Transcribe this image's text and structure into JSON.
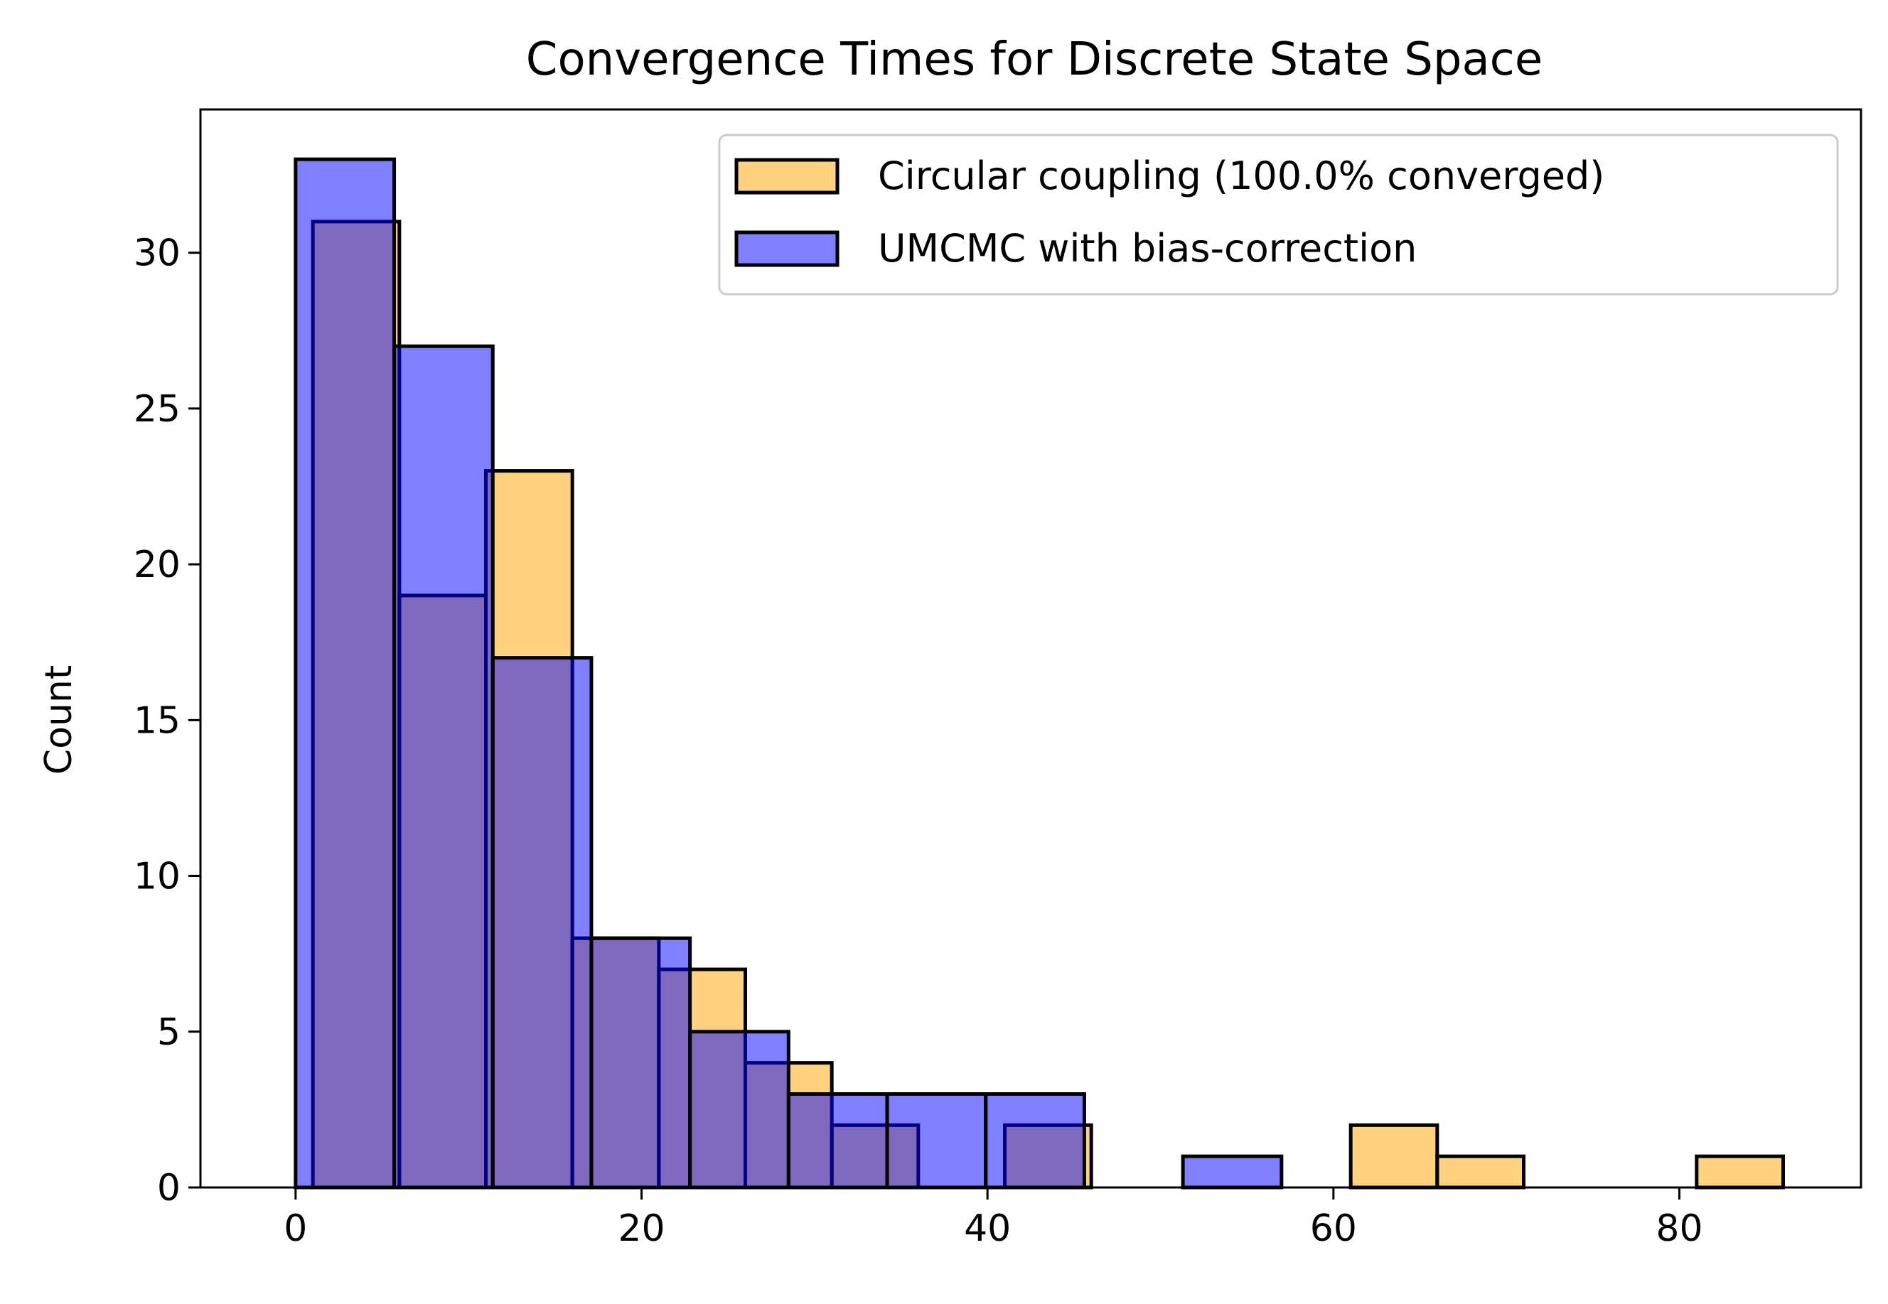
{
  "chart_data": {
    "type": "bar",
    "title": "Convergence Times for Discrete State Space",
    "xlabel": "",
    "ylabel": "Count",
    "xlim": [
      -5.5,
      90.5
    ],
    "ylim": [
      0,
      34.6
    ],
    "xticks": [
      0,
      20,
      40,
      60,
      80
    ],
    "yticks": [
      0,
      5,
      10,
      15,
      20,
      25,
      30
    ],
    "grid": false,
    "legend_position": "top-right",
    "series": [
      {
        "name": "Circular coupling (100.0% converged)",
        "color": "#FFA500",
        "alpha": 0.5,
        "bins": [
          {
            "x0": 1.0,
            "x1": 6.0,
            "count": 31
          },
          {
            "x0": 6.0,
            "x1": 11.0,
            "count": 19
          },
          {
            "x0": 11.0,
            "x1": 16.0,
            "count": 23
          },
          {
            "x0": 16.0,
            "x1": 21.0,
            "count": 8
          },
          {
            "x0": 21.0,
            "x1": 26.0,
            "count": 7
          },
          {
            "x0": 26.0,
            "x1": 31.0,
            "count": 4
          },
          {
            "x0": 31.0,
            "x1": 36.0,
            "count": 2
          },
          {
            "x0": 36.0,
            "x1": 41.0,
            "count": 0
          },
          {
            "x0": 41.0,
            "x1": 46.0,
            "count": 2
          },
          {
            "x0": 46.0,
            "x1": 51.0,
            "count": 0
          },
          {
            "x0": 51.0,
            "x1": 56.0,
            "count": 0
          },
          {
            "x0": 56.0,
            "x1": 61.0,
            "count": 0
          },
          {
            "x0": 61.0,
            "x1": 66.0,
            "count": 2
          },
          {
            "x0": 66.0,
            "x1": 71.0,
            "count": 1
          },
          {
            "x0": 71.0,
            "x1": 76.0,
            "count": 0
          },
          {
            "x0": 76.0,
            "x1": 81.0,
            "count": 0
          },
          {
            "x0": 81.0,
            "x1": 86.0,
            "count": 1
          }
        ]
      },
      {
        "name": "UMCMC with bias-correction",
        "color": "#0000FF",
        "alpha": 0.5,
        "bins": [
          {
            "x0": 0.0,
            "x1": 5.7,
            "count": 33
          },
          {
            "x0": 5.7,
            "x1": 11.4,
            "count": 27
          },
          {
            "x0": 11.4,
            "x1": 17.1,
            "count": 17
          },
          {
            "x0": 17.1,
            "x1": 22.8,
            "count": 8
          },
          {
            "x0": 22.8,
            "x1": 28.5,
            "count": 5
          },
          {
            "x0": 28.5,
            "x1": 34.2,
            "count": 3
          },
          {
            "x0": 34.2,
            "x1": 39.9,
            "count": 3
          },
          {
            "x0": 39.9,
            "x1": 45.6,
            "count": 3
          },
          {
            "x0": 45.6,
            "x1": 51.3,
            "count": 0
          },
          {
            "x0": 51.3,
            "x1": 57.0,
            "count": 1
          }
        ]
      }
    ]
  }
}
